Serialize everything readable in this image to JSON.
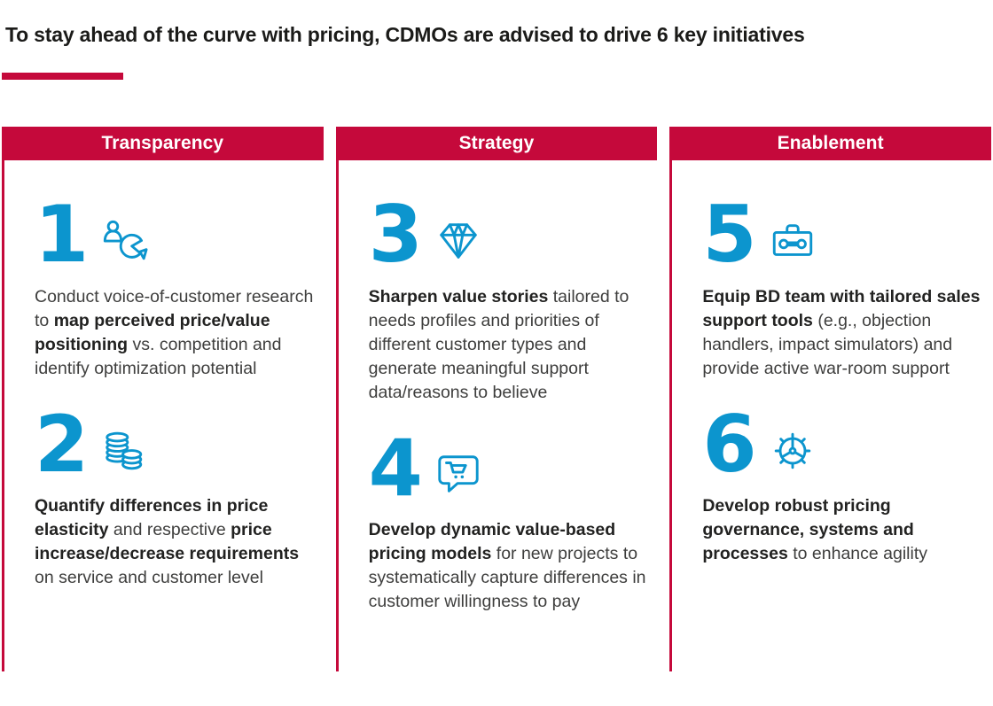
{
  "page": {
    "title": "To stay ahead of the curve with pricing, CDMOs are advised to drive 6 key initiatives"
  },
  "colors": {
    "crimson": "#C5093B",
    "blue": "#0C95CE",
    "title_text": "#1B1B19",
    "body_text": "#3E3E3D"
  },
  "columns": [
    {
      "header": "Transparency",
      "items": [
        {
          "number": "1",
          "icon": "customer-research-pie-icon",
          "segments": [
            {
              "bold": false,
              "text": "Conduct voice-of-customer research to "
            },
            {
              "bold": true,
              "text": "map perceived price/value positioning"
            },
            {
              "bold": false,
              "text": " vs. competition and identify optimization potential"
            }
          ]
        },
        {
          "number": "2",
          "icon": "coins-icon",
          "segments": [
            {
              "bold": true,
              "text": "Quantify differences in price elasticity"
            },
            {
              "bold": false,
              "text": " and respective "
            },
            {
              "bold": true,
              "text": "price increase/decrease requirements"
            },
            {
              "bold": false,
              "text": " on service and customer level"
            }
          ]
        }
      ]
    },
    {
      "header": "Strategy",
      "items": [
        {
          "number": "3",
          "icon": "diamond-icon",
          "segments": [
            {
              "bold": true,
              "text": "Sharpen value stories"
            },
            {
              "bold": false,
              "text": " tailored to needs profiles and priorities of different customer types and generate meaningful support data/reasons to believe"
            }
          ]
        },
        {
          "number": "4",
          "icon": "cart-speech-bubble-icon",
          "segments": [
            {
              "bold": true,
              "text": "Develop dynamic value-based pricing models"
            },
            {
              "bold": false,
              "text": " for new projects to systematically capture differences in customer willingness to pay"
            }
          ]
        }
      ]
    },
    {
      "header": "Enablement",
      "items": [
        {
          "number": "5",
          "icon": "toolbox-icon",
          "segments": [
            {
              "bold": true,
              "text": "Equip BD team with tailored sales support tools"
            },
            {
              "bold": false,
              "text": " (e.g., objection handlers, impact simulators) and provide active war-room support"
            }
          ]
        },
        {
          "number": "6",
          "icon": "gear-wheel-icon",
          "segments": [
            {
              "bold": true,
              "text": "Develop robust pricing governance, systems and processes"
            },
            {
              "bold": false,
              "text": " to enhance agility"
            }
          ]
        }
      ]
    }
  ]
}
